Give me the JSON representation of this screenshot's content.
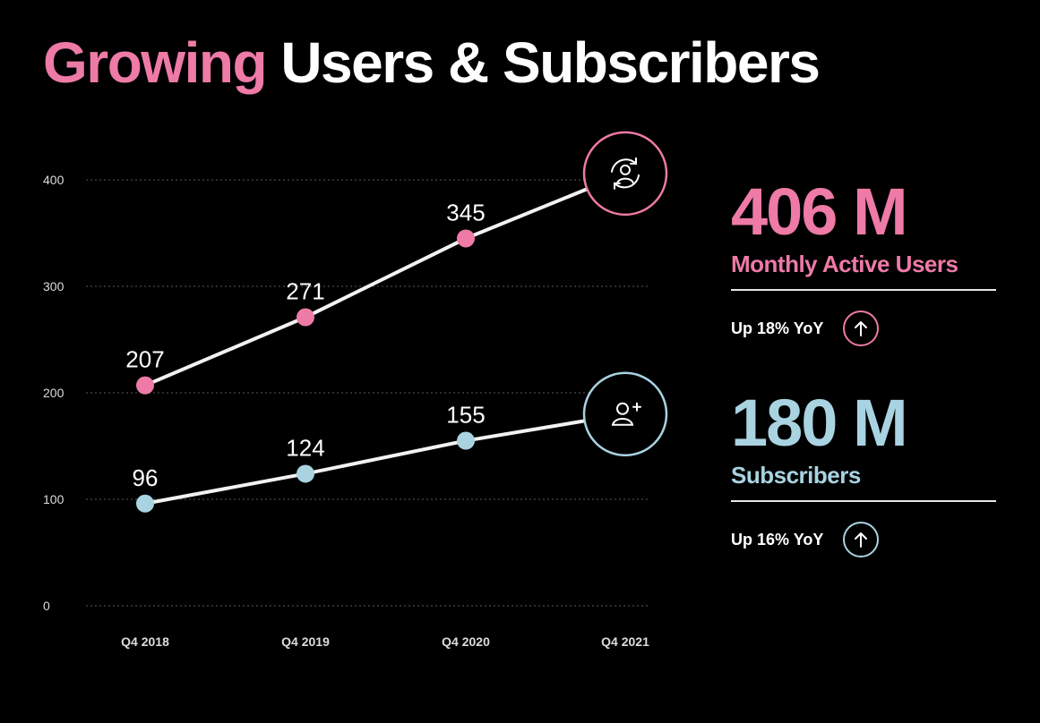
{
  "title": {
    "highlight": "Growing",
    "rest": "Users & Subscribers"
  },
  "colors": {
    "background": "#000000",
    "pink": "#ee7aa6",
    "blue": "#a9d3e1",
    "line": "#f2f2f2",
    "grid": "#5a5a5a",
    "axis_text": "#dcdcdc"
  },
  "chart_data": {
    "type": "line",
    "categories": [
      "Q4 2018",
      "Q4 2019",
      "Q4 2020",
      "Q4 2021"
    ],
    "ylim": [
      0,
      400
    ],
    "yticks": [
      0,
      100,
      200,
      300,
      400
    ],
    "grid": true,
    "series": [
      {
        "values": [
          207,
          271,
          345,
          406
        ],
        "point_labels": [
          "207",
          "271",
          "345",
          null
        ],
        "color": "#ee7aa6",
        "end_icon": "user-refresh-icon"
      },
      {
        "values": [
          96,
          124,
          155,
          180
        ],
        "point_labels": [
          "96",
          "124",
          "155",
          null
        ],
        "color": "#a9d3e1",
        "end_icon": "user-add-icon"
      }
    ]
  },
  "stats": [
    {
      "value": "406 M",
      "label": "Monthly Active Users",
      "yoy": "Up 18% YoY",
      "color": "#ee7aa6",
      "icon": "arrow-up-icon"
    },
    {
      "value": "180 M",
      "label": "Subscribers",
      "yoy": "Up 16% YoY",
      "color": "#a9d3e1",
      "icon": "arrow-up-icon"
    }
  ]
}
